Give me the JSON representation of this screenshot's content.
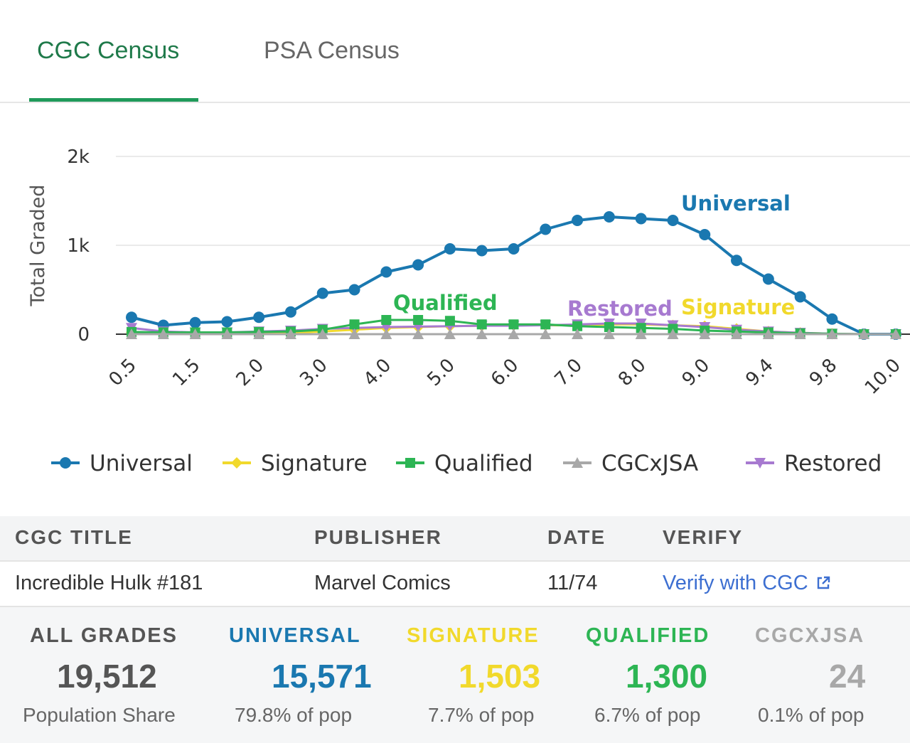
{
  "tabs": [
    {
      "label": "CGC Census",
      "active": true
    },
    {
      "label": "PSA Census",
      "active": false
    }
  ],
  "colors": {
    "Universal": "#1a78b0",
    "Signature": "#f1d92c",
    "Qualified": "#2db554",
    "CGCxJSA": "#a8a8a8",
    "Restored": "#a77ad0",
    "accent_green": "#1f9a5a"
  },
  "chart_data": {
    "type": "line",
    "ylabel": "Total Graded",
    "y_ticks": [
      "0",
      "1k",
      "2k"
    ],
    "ylim": [
      0,
      2000
    ],
    "x": [
      "0.5",
      "1.0",
      "1.5",
      "1.8",
      "2.0",
      "2.5",
      "3.0",
      "3.5",
      "4.0",
      "4.5",
      "5.0",
      "5.5",
      "6.0",
      "6.5",
      "7.0",
      "7.5",
      "8.0",
      "8.5",
      "9.0",
      "9.2",
      "9.4",
      "9.6",
      "9.8",
      "9.9",
      "10.0"
    ],
    "x_tick_labels": [
      "0.5",
      "1.5",
      "2.0",
      "3.0",
      "4.0",
      "5.0",
      "6.0",
      "7.0",
      "8.0",
      "9.0",
      "9.4",
      "9.8",
      "10.0"
    ],
    "grid": true,
    "legend_position": "bottom",
    "series": [
      {
        "name": "Universal",
        "values": [
          190,
          100,
          130,
          140,
          190,
          250,
          460,
          500,
          700,
          780,
          960,
          940,
          960,
          1180,
          1280,
          1320,
          1300,
          1280,
          1120,
          830,
          620,
          420,
          170,
          0,
          0
        ]
      },
      {
        "name": "Signature",
        "values": [
          20,
          10,
          10,
          10,
          15,
          15,
          30,
          50,
          70,
          80,
          90,
          95,
          100,
          100,
          100,
          110,
          110,
          100,
          90,
          60,
          30,
          15,
          5,
          0,
          0
        ]
      },
      {
        "name": "Qualified",
        "values": [
          25,
          20,
          20,
          20,
          25,
          30,
          50,
          110,
          160,
          160,
          150,
          110,
          110,
          110,
          90,
          80,
          70,
          60,
          40,
          30,
          20,
          10,
          5,
          0,
          0
        ]
      },
      {
        "name": "CGCxJSA",
        "values": [
          0,
          0,
          0,
          0,
          0,
          0,
          0,
          0,
          0,
          0,
          0,
          0,
          0,
          0,
          0,
          0,
          0,
          0,
          0,
          0,
          0,
          0,
          0,
          0,
          0
        ]
      },
      {
        "name": "Restored",
        "values": [
          70,
          30,
          20,
          20,
          30,
          40,
          60,
          70,
          80,
          85,
          90,
          95,
          95,
          100,
          110,
          120,
          120,
          100,
          80,
          50,
          30,
          15,
          5,
          0,
          0
        ]
      }
    ],
    "annotations": [
      "Universal",
      "Qualified",
      "Restored",
      "Signature"
    ]
  },
  "table": {
    "headers": [
      "CGC TITLE",
      "PUBLISHER",
      "DATE",
      "VERIFY"
    ],
    "row": {
      "title": "Incredible Hulk #181",
      "publisher": "Marvel Comics",
      "date": "11/74",
      "verify": "Verify with CGC"
    }
  },
  "stats": [
    {
      "label": "ALL GRADES",
      "value": "19,512",
      "sub": "Population Share",
      "color": "#555555"
    },
    {
      "label": "UNIVERSAL",
      "value": "15,571",
      "sub": "79.8% of pop",
      "color": "#1a78b0"
    },
    {
      "label": "SIGNATURE",
      "value": "1,503",
      "sub": "7.7% of pop",
      "color": "#f1d92c"
    },
    {
      "label": "QUALIFIED",
      "value": "1,300",
      "sub": "6.7% of pop",
      "color": "#2db554"
    },
    {
      "label": "CGCXJSA",
      "value": "24",
      "sub": "0.1% of pop",
      "color": "#a8a8a8"
    }
  ]
}
